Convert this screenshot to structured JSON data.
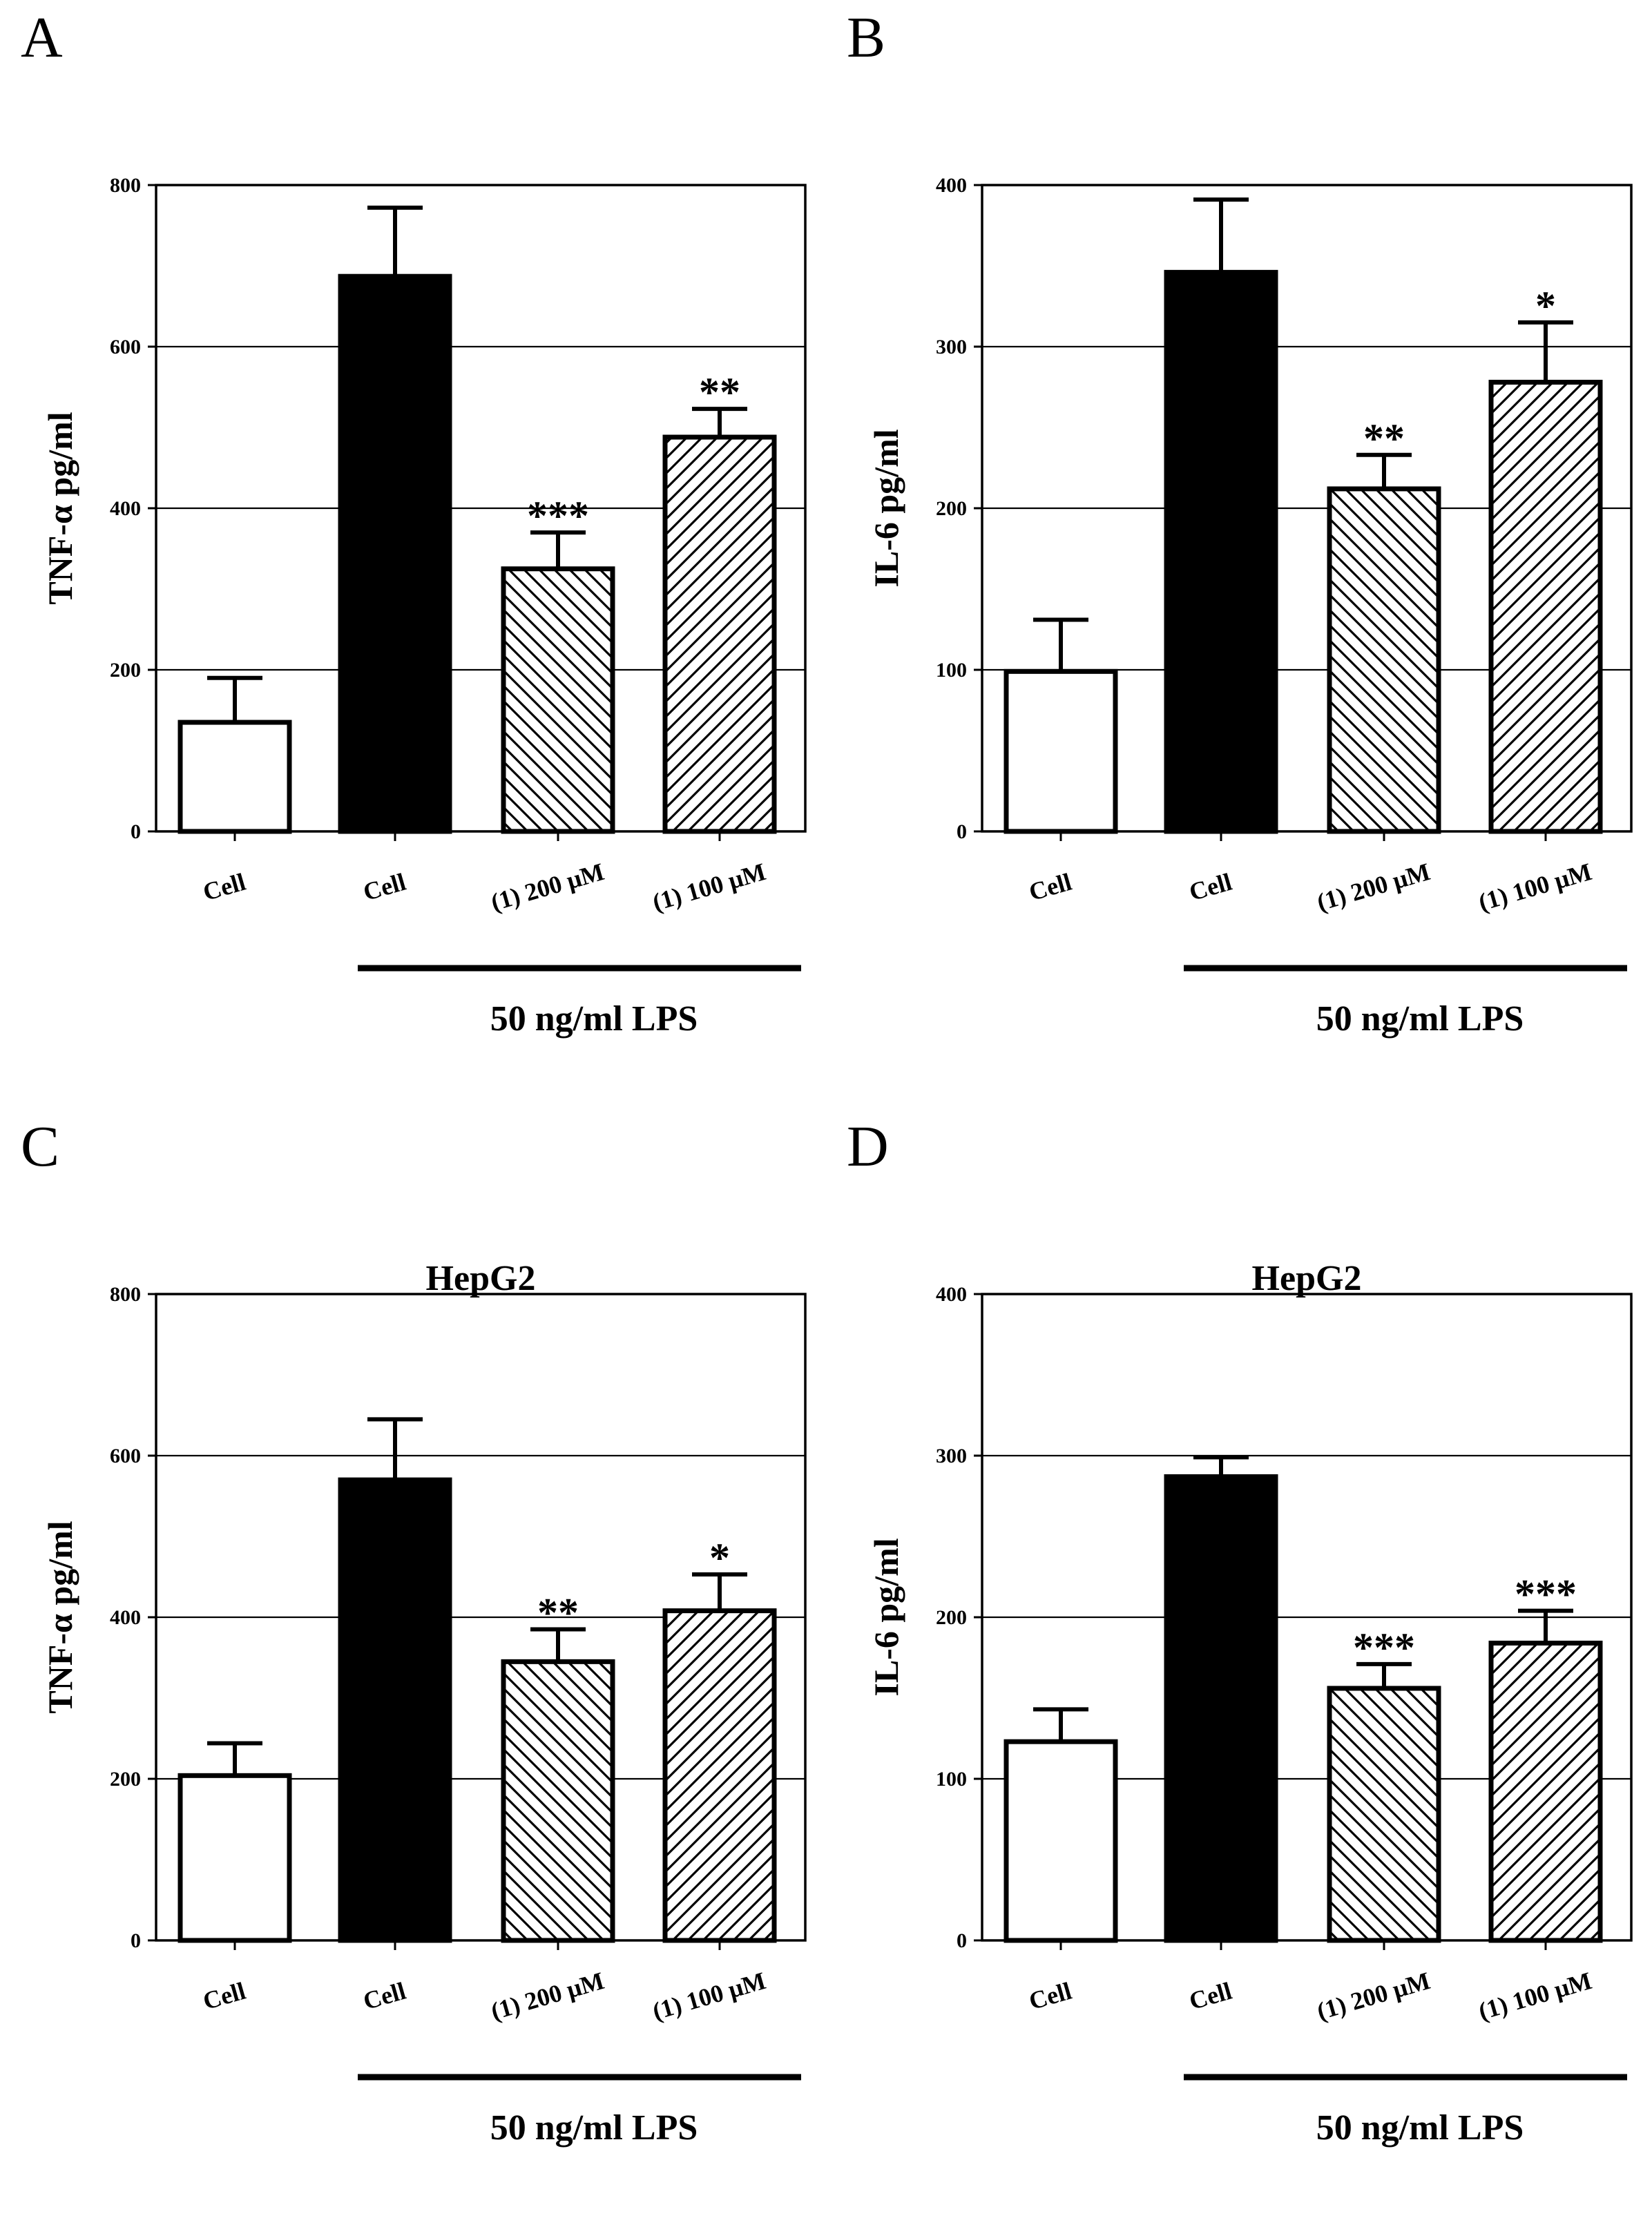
{
  "colors": {
    "ink": "#000000",
    "background": "#ffffff"
  },
  "chart_data": [
    {
      "panel": "A",
      "type": "bar",
      "title": "",
      "ylabel": "TNF-α  pg/ml",
      "xlabel": "",
      "ylim": [
        0,
        800
      ],
      "yticks": [
        "0",
        "200",
        "400",
        "600",
        "800"
      ],
      "grid": true,
      "categories": [
        "Cell",
        "Cell",
        "(1) 200 μM",
        "(1) 100 μM"
      ],
      "values": [
        135,
        687,
        325,
        488
      ],
      "errors": [
        55,
        85,
        45,
        35
      ],
      "fills": [
        "white",
        "black",
        "hatch-back",
        "hatch-fwd"
      ],
      "significance": [
        "",
        "",
        "***",
        "**"
      ],
      "treatment": "50 ng/ml LPS"
    },
    {
      "panel": "B",
      "type": "bar",
      "title": "",
      "ylabel": "IL-6 pg/ml",
      "xlabel": "",
      "ylim": [
        0,
        400
      ],
      "yticks": [
        "0",
        "100",
        "200",
        "300",
        "400"
      ],
      "grid": true,
      "categories": [
        "Cell",
        "Cell",
        "(1) 200 μM",
        "(1) 100 μM"
      ],
      "values": [
        99,
        346,
        212,
        278
      ],
      "errors": [
        32,
        45,
        21,
        37
      ],
      "fills": [
        "white",
        "black",
        "hatch-back",
        "hatch-fwd"
      ],
      "significance": [
        "",
        "",
        "**",
        "*"
      ],
      "treatment": "50 ng/ml LPS"
    },
    {
      "panel": "C",
      "type": "bar",
      "title": "HepG2",
      "ylabel": "TNF-α  pg/ml",
      "xlabel": "",
      "ylim": [
        0,
        800
      ],
      "yticks": [
        "0",
        "200",
        "400",
        "600",
        "800"
      ],
      "grid": true,
      "categories": [
        "Cell",
        "Cell",
        "(1) 200 μM",
        "(1) 100 μM"
      ],
      "values": [
        204,
        570,
        345,
        408
      ],
      "errors": [
        40,
        75,
        40,
        45
      ],
      "fills": [
        "white",
        "black",
        "hatch-back",
        "hatch-fwd"
      ],
      "significance": [
        "",
        "",
        "**",
        "*"
      ],
      "treatment": "50 ng/ml LPS"
    },
    {
      "panel": "D",
      "type": "bar",
      "title": "HepG2",
      "ylabel": "IL-6 pg/ml",
      "xlabel": "",
      "ylim": [
        0,
        400
      ],
      "yticks": [
        "0",
        "100",
        "200",
        "300",
        "400"
      ],
      "grid": true,
      "categories": [
        "Cell",
        "Cell",
        "(1) 200 μM",
        "(1) 100 μM"
      ],
      "values": [
        123,
        287,
        156,
        184
      ],
      "errors": [
        20,
        12,
        15,
        20
      ],
      "fills": [
        "white",
        "black",
        "hatch-back",
        "hatch-fwd"
      ],
      "significance": [
        "",
        "",
        "***",
        "***"
      ],
      "treatment": "50 ng/ml LPS"
    }
  ]
}
